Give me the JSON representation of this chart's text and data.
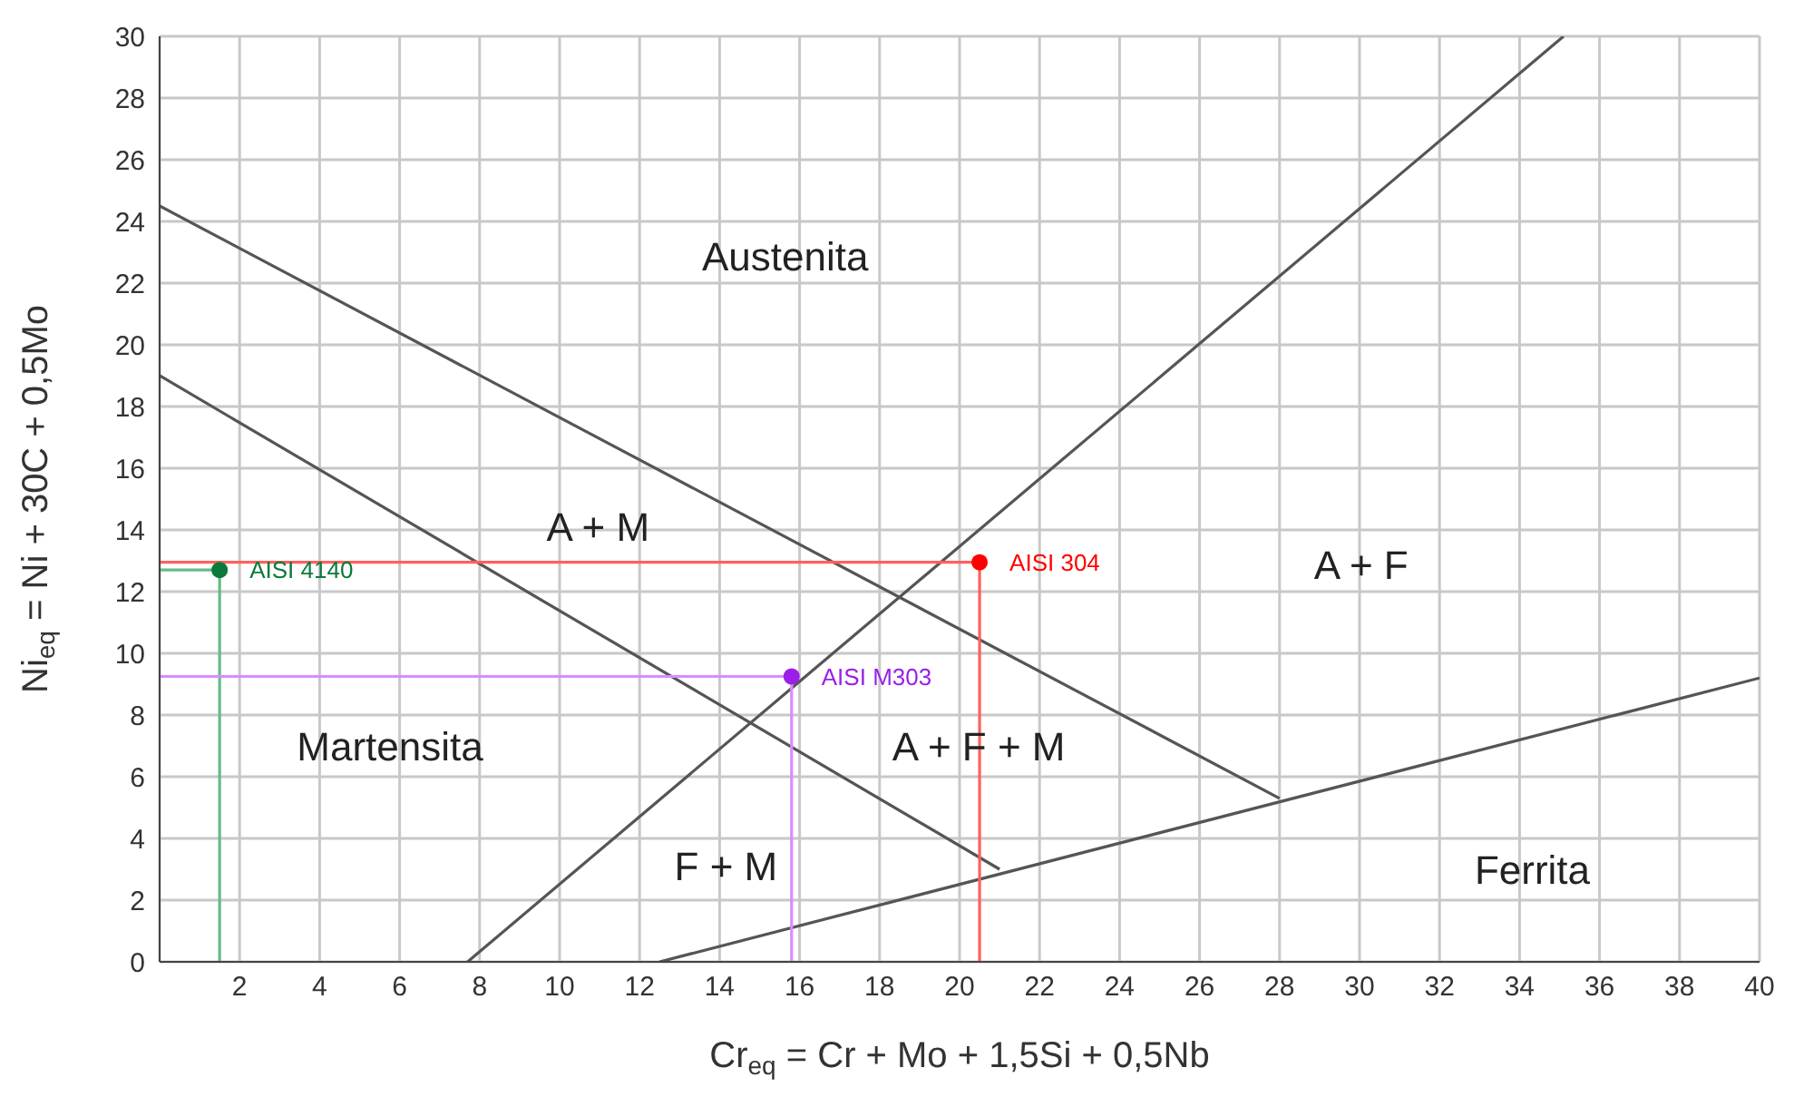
{
  "chart_data": {
    "type": "line",
    "xlabel": "Cr$_{eq}$ = Cr + Mo + 1,5Si + 0,5Nb",
    "ylabel": "Ni$_{eq}$ = Ni + 30C + 0,5Mo",
    "xlim": [
      0,
      40
    ],
    "ylim": [
      0,
      30
    ],
    "xticks": [
      {
        "value": 0,
        "label": null
      },
      2,
      4,
      6,
      8,
      10,
      12,
      14,
      16,
      18,
      20,
      22,
      24,
      26,
      28,
      30,
      32,
      34,
      36,
      38,
      40
    ],
    "yticks": [
      0,
      2,
      4,
      6,
      8,
      10,
      12,
      14,
      16,
      18,
      20,
      22,
      24,
      26,
      28,
      30
    ],
    "grid": true,
    "legend": false,
    "marker": "none",
    "series": [
      {
        "color": "#555555",
        "x": [
          0,
          28
        ],
        "values": [
          24.5,
          5.3
        ]
      },
      {
        "color": "#555555",
        "x": [
          0,
          21
        ],
        "values": [
          19,
          3
        ]
      },
      {
        "color": "#555555",
        "x": [
          7.7,
          35.1
        ],
        "values": [
          0,
          30
        ]
      },
      {
        "color": "#555555",
        "x": [
          12.5,
          40
        ],
        "values": [
          0,
          9.2
        ]
      },
      {
        "color": "#ff6060",
        "x": [
          0,
          20.5,
          20.5
        ],
        "values": [
          12.95,
          12.95,
          0
        ]
      },
      {
        "color": "#66bb88",
        "x": [
          0,
          1.5,
          1.5
        ],
        "values": [
          12.7,
          12.7,
          0
        ]
      },
      {
        "color": "#d98cff",
        "x": [
          0,
          15.8,
          15.8
        ],
        "values": [
          9.25,
          9.25,
          0
        ]
      },
      {
        "type": "scatter",
        "name": "AISI 4140",
        "color": "#0a7a3a",
        "marker": "circle",
        "x": [
          1.5
        ],
        "values": [
          12.7
        ]
      },
      {
        "type": "scatter",
        "name": "AISI 304",
        "color": "#ff0000",
        "marker": "circle",
        "x": [
          20.5
        ],
        "values": [
          12.95
        ]
      },
      {
        "type": "scatter",
        "name": "AISI M303",
        "color": "#9b1fe8",
        "marker": "circle",
        "x": [
          15.8
        ],
        "values": [
          9.25
        ]
      }
    ],
    "annotations": [
      "Austenita",
      "A + M",
      "A + F",
      "Martensita",
      "A + F + M",
      "F + M",
      "Ferrita"
    ]
  }
}
